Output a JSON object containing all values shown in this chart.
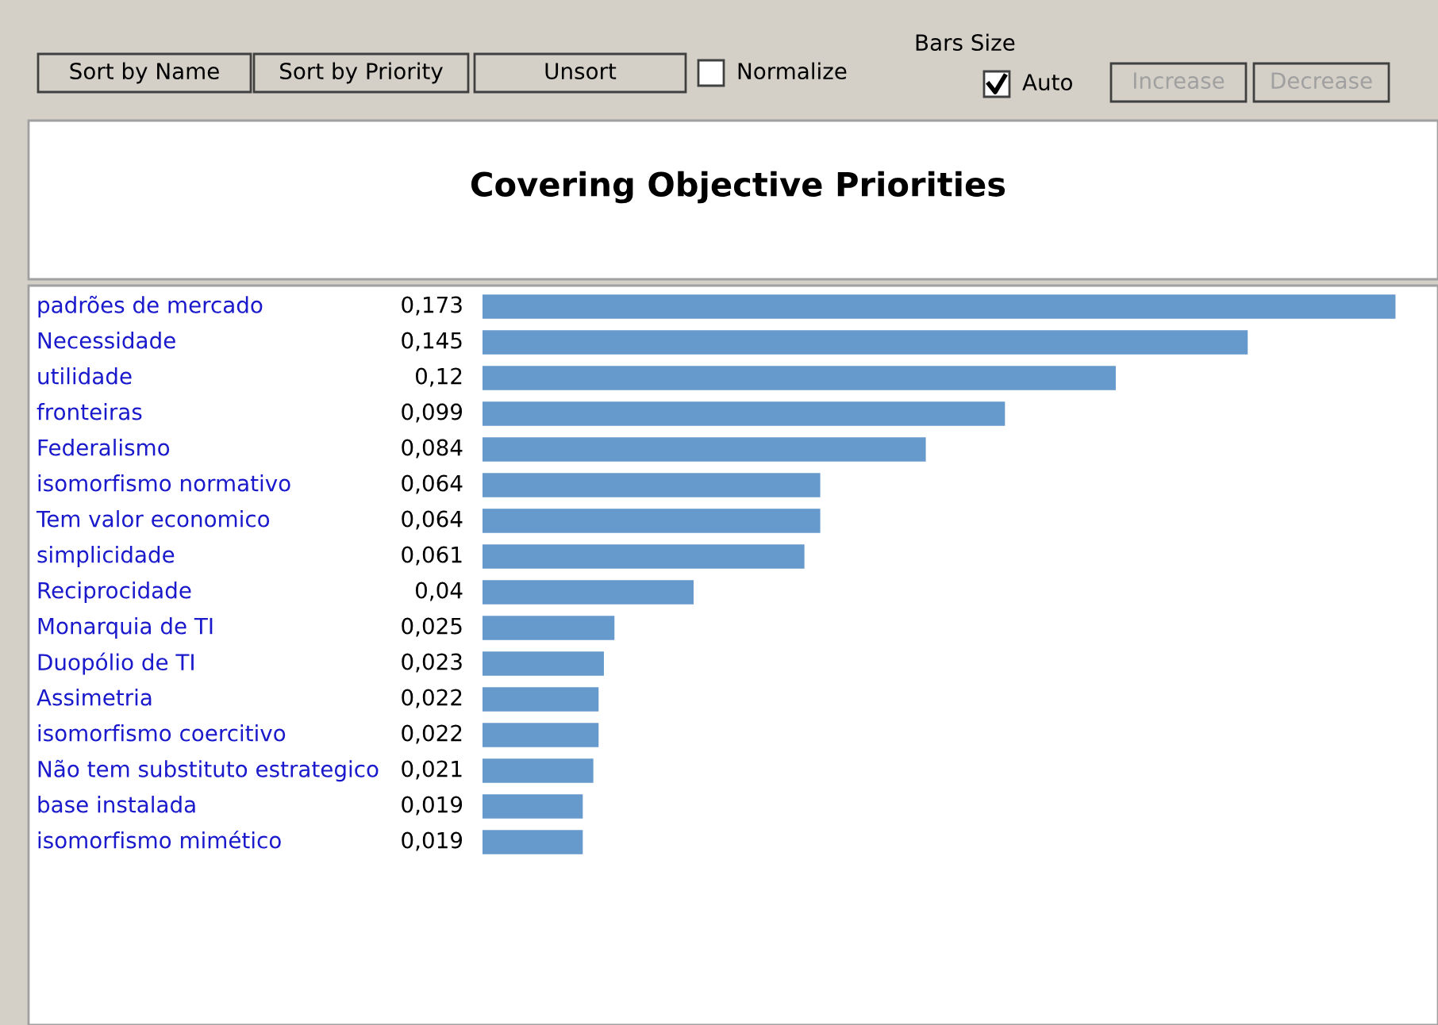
{
  "chart_data": {
    "type": "bar",
    "orientation": "horizontal",
    "title": "Covering Objective Priorities",
    "categories": [
      "padrões de mercado",
      "Necessidade",
      "utilidade",
      "fronteiras",
      "Federalismo",
      "isomorfismo normativo",
      "Tem valor economico",
      "simplicidade",
      "Reciprocidade",
      "Monarquia de TI",
      "Duopólio de TI",
      "Assimetria",
      "isomorfismo coercitivo",
      "Não tem substituto estrategico",
      "base instalada",
      "isomorfismo mimético"
    ],
    "series": [
      {
        "color": "#6699cc",
        "values": [
          0.173,
          0.145,
          0.12,
          0.099,
          0.084,
          0.064,
          0.064,
          0.061,
          0.04,
          0.025,
          0.023,
          0.022,
          0.022,
          0.021,
          0.019,
          0.019
        ],
        "value_labels": [
          "0,173",
          "0,145",
          "0,12",
          "0,099",
          "0,084",
          "0,064",
          "0,064",
          "0,061",
          "0,04",
          "0,025",
          "0,023",
          "0,022",
          "0,022",
          "0,021",
          "0,019",
          "0,019"
        ]
      }
    ],
    "annotations": [
      "Sort by Name",
      "Sort by Priority",
      "Unsort",
      "Normalize",
      "Bars Size",
      "Auto",
      "Increase",
      "Decrease"
    ],
    "tick_labels": false,
    "legend": false
  }
}
